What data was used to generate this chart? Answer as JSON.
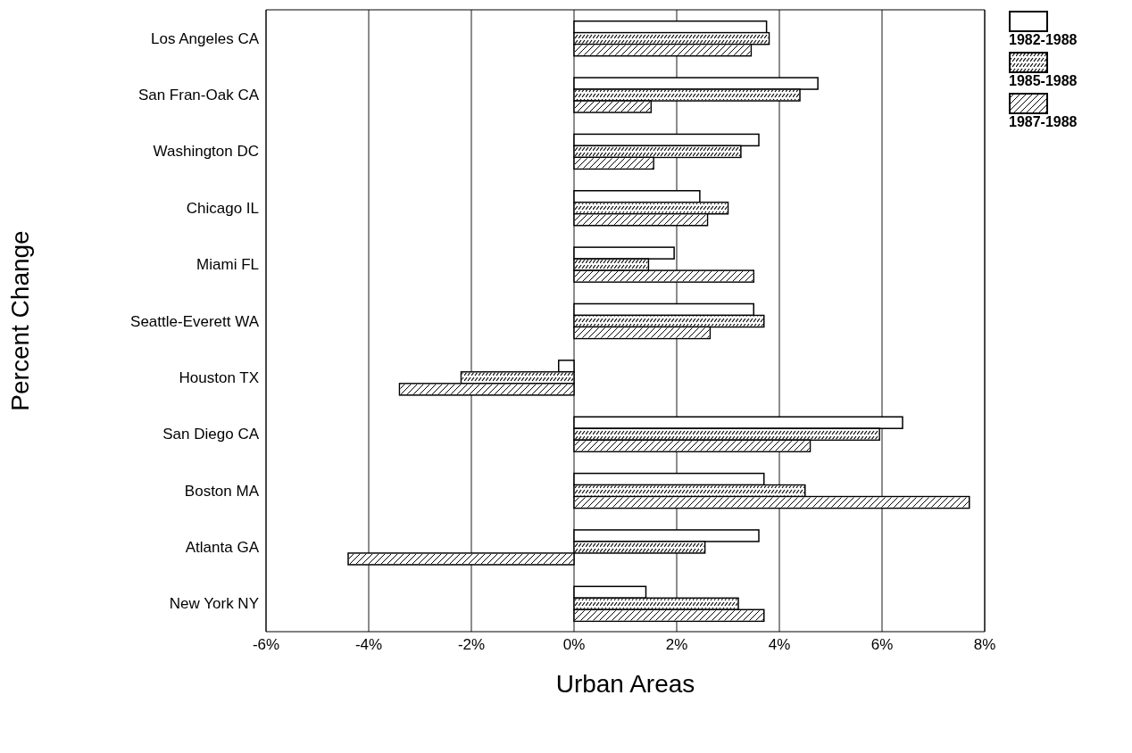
{
  "chart_data": {
    "type": "bar",
    "orientation": "horizontal",
    "xlabel": "Urban Areas",
    "ylabel": "Percent Change",
    "categories": [
      "Los Angeles CA",
      "San Fran-Oak CA",
      "Washington DC",
      "Chicago IL",
      "Miami FL",
      "Seattle-Everett WA",
      "Houston TX",
      "San Diego CA",
      "Boston MA",
      "Atlanta GA",
      "New York NY"
    ],
    "series": [
      {
        "name": "1982-1988",
        "color": "#ffffff",
        "values": [
          3.75,
          4.75,
          3.6,
          2.45,
          1.95,
          3.5,
          -0.3,
          6.4,
          3.7,
          3.6,
          1.4
        ]
      },
      {
        "name": "1985-1988",
        "color": "#ffffff",
        "values": [
          3.8,
          4.4,
          3.25,
          3.0,
          1.45,
          3.7,
          -2.2,
          5.95,
          4.5,
          2.55,
          3.2
        ]
      },
      {
        "name": "1987-1988",
        "color": "#ffffff",
        "values": [
          3.45,
          1.5,
          1.55,
          2.6,
          3.5,
          2.65,
          -3.4,
          4.6,
          7.7,
          -4.4,
          3.7
        ]
      }
    ],
    "xlim": [
      -6,
      8
    ],
    "xticks": [
      {
        "value": -6,
        "label": "-6%"
      },
      {
        "value": -4,
        "label": "-4%"
      },
      {
        "value": -2,
        "label": "-2%"
      },
      {
        "value": 0,
        "label": "0%"
      },
      {
        "value": 2,
        "label": "2%"
      },
      {
        "value": 4,
        "label": "4%"
      },
      {
        "value": 6,
        "label": "6%"
      },
      {
        "value": 8,
        "label": "8%"
      }
    ],
    "grid": "x",
    "legend": "top right"
  }
}
